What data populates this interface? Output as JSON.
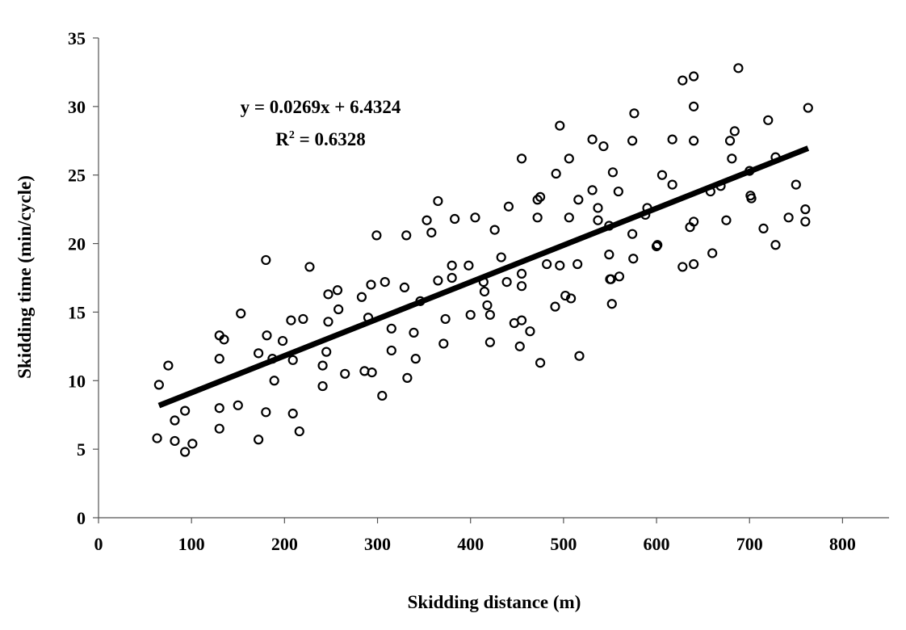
{
  "chart_data": {
    "type": "scatter",
    "xlabel": "Skidding distance (m)",
    "ylabel": "Skidding time (min/cycle)",
    "xlim": [
      0,
      850
    ],
    "ylim": [
      0,
      35
    ],
    "xticks": [
      0,
      100,
      200,
      300,
      400,
      500,
      600,
      700,
      800
    ],
    "yticks": [
      0,
      5,
      10,
      15,
      20,
      25,
      30,
      35
    ],
    "grid": false,
    "legend": "none",
    "equation_line1": "y = 0.0269x + 6.4324",
    "equation_line2_prefix": "R",
    "equation_line2_sup": "2",
    "equation_line2_suffix": " = 0.6328",
    "trendline": {
      "slope": 0.0269,
      "intercept": 6.4324,
      "x_range": [
        65,
        763
      ]
    },
    "series": [
      {
        "marker": "open-circle",
        "points": [
          [
            65,
            9.7
          ],
          [
            63,
            5.8
          ],
          [
            75,
            11.1
          ],
          [
            82,
            7.1
          ],
          [
            82,
            5.6
          ],
          [
            93,
            7.8
          ],
          [
            93,
            4.8
          ],
          [
            101,
            5.4
          ],
          [
            130,
            13.3
          ],
          [
            130,
            11.6
          ],
          [
            130,
            8.0
          ],
          [
            130,
            6.5
          ],
          [
            135,
            13.0
          ],
          [
            150,
            8.2
          ],
          [
            153,
            14.9
          ],
          [
            172,
            12.0
          ],
          [
            172,
            5.7
          ],
          [
            180,
            18.8
          ],
          [
            181,
            13.3
          ],
          [
            180,
            7.7
          ],
          [
            187,
            11.6
          ],
          [
            189,
            10.0
          ],
          [
            198,
            12.9
          ],
          [
            207,
            14.4
          ],
          [
            209,
            11.5
          ],
          [
            209,
            7.6
          ],
          [
            216,
            6.3
          ],
          [
            220,
            14.5
          ],
          [
            227,
            18.3
          ],
          [
            241,
            11.1
          ],
          [
            241,
            9.6
          ],
          [
            245,
            12.1
          ],
          [
            247,
            16.3
          ],
          [
            247,
            14.3
          ],
          [
            257,
            16.6
          ],
          [
            258,
            15.2
          ],
          [
            265,
            10.5
          ],
          [
            283,
            16.1
          ],
          [
            286,
            10.7
          ],
          [
            290,
            14.6
          ],
          [
            293,
            17.0
          ],
          [
            294,
            10.6
          ],
          [
            299,
            20.6
          ],
          [
            305,
            8.9
          ],
          [
            308,
            17.2
          ],
          [
            315,
            13.8
          ],
          [
            315,
            12.2
          ],
          [
            329,
            16.8
          ],
          [
            331,
            20.6
          ],
          [
            332,
            10.2
          ],
          [
            339,
            13.5
          ],
          [
            341,
            11.6
          ],
          [
            346,
            15.8
          ],
          [
            353,
            21.7
          ],
          [
            358,
            20.8
          ],
          [
            365,
            23.1
          ],
          [
            365,
            17.3
          ],
          [
            371,
            12.7
          ],
          [
            373,
            14.5
          ],
          [
            380,
            17.5
          ],
          [
            380,
            18.4
          ],
          [
            383,
            21.8
          ],
          [
            398,
            18.4
          ],
          [
            400,
            14.8
          ],
          [
            405,
            21.9
          ],
          [
            414,
            17.2
          ],
          [
            415,
            16.5
          ],
          [
            418,
            15.5
          ],
          [
            421,
            14.8
          ],
          [
            421,
            12.8
          ],
          [
            426,
            21.0
          ],
          [
            433,
            19.0
          ],
          [
            439,
            17.2
          ],
          [
            441,
            22.7
          ],
          [
            447,
            14.2
          ],
          [
            453,
            12.5
          ],
          [
            455,
            26.2
          ],
          [
            455,
            17.8
          ],
          [
            455,
            16.9
          ],
          [
            455,
            14.4
          ],
          [
            464,
            13.6
          ],
          [
            472,
            23.2
          ],
          [
            472,
            21.9
          ],
          [
            475,
            23.4
          ],
          [
            475,
            11.3
          ],
          [
            482,
            18.5
          ],
          [
            491,
            15.4
          ],
          [
            492,
            25.1
          ],
          [
            496,
            28.6
          ],
          [
            496,
            18.4
          ],
          [
            502,
            16.2
          ],
          [
            506,
            26.2
          ],
          [
            506,
            21.9
          ],
          [
            508,
            16.0
          ],
          [
            515,
            18.5
          ],
          [
            516,
            23.2
          ],
          [
            517,
            11.8
          ],
          [
            531,
            27.6
          ],
          [
            531,
            23.9
          ],
          [
            537,
            22.6
          ],
          [
            537,
            21.7
          ],
          [
            543,
            27.1
          ],
          [
            549,
            21.3
          ],
          [
            549,
            19.2
          ],
          [
            550,
            17.4
          ],
          [
            551,
            17.4
          ],
          [
            552,
            15.6
          ],
          [
            553,
            25.2
          ],
          [
            559,
            23.8
          ],
          [
            560,
            17.6
          ],
          [
            574,
            27.5
          ],
          [
            574,
            20.7
          ],
          [
            575,
            18.9
          ],
          [
            576,
            29.5
          ],
          [
            588,
            22.1
          ],
          [
            590,
            22.6
          ],
          [
            600,
            19.8
          ],
          [
            601,
            19.9
          ],
          [
            606,
            25.0
          ],
          [
            617,
            27.6
          ],
          [
            617,
            24.3
          ],
          [
            628,
            31.9
          ],
          [
            628,
            18.3
          ],
          [
            636,
            21.2
          ],
          [
            640,
            32.2
          ],
          [
            640,
            30.0
          ],
          [
            640,
            27.5
          ],
          [
            640,
            21.6
          ],
          [
            640,
            18.5
          ],
          [
            658,
            23.8
          ],
          [
            660,
            19.3
          ],
          [
            669,
            24.2
          ],
          [
            675,
            21.7
          ],
          [
            679,
            27.5
          ],
          [
            681,
            26.2
          ],
          [
            684,
            28.2
          ],
          [
            688,
            32.8
          ],
          [
            700,
            25.3
          ],
          [
            701,
            23.5
          ],
          [
            702,
            23.3
          ],
          [
            715,
            21.1
          ],
          [
            720,
            29.0
          ],
          [
            728,
            26.3
          ],
          [
            728,
            19.9
          ],
          [
            742,
            21.9
          ],
          [
            750,
            24.3
          ],
          [
            760,
            22.5
          ],
          [
            760,
            21.6
          ],
          [
            763,
            29.9
          ]
        ]
      }
    ]
  }
}
